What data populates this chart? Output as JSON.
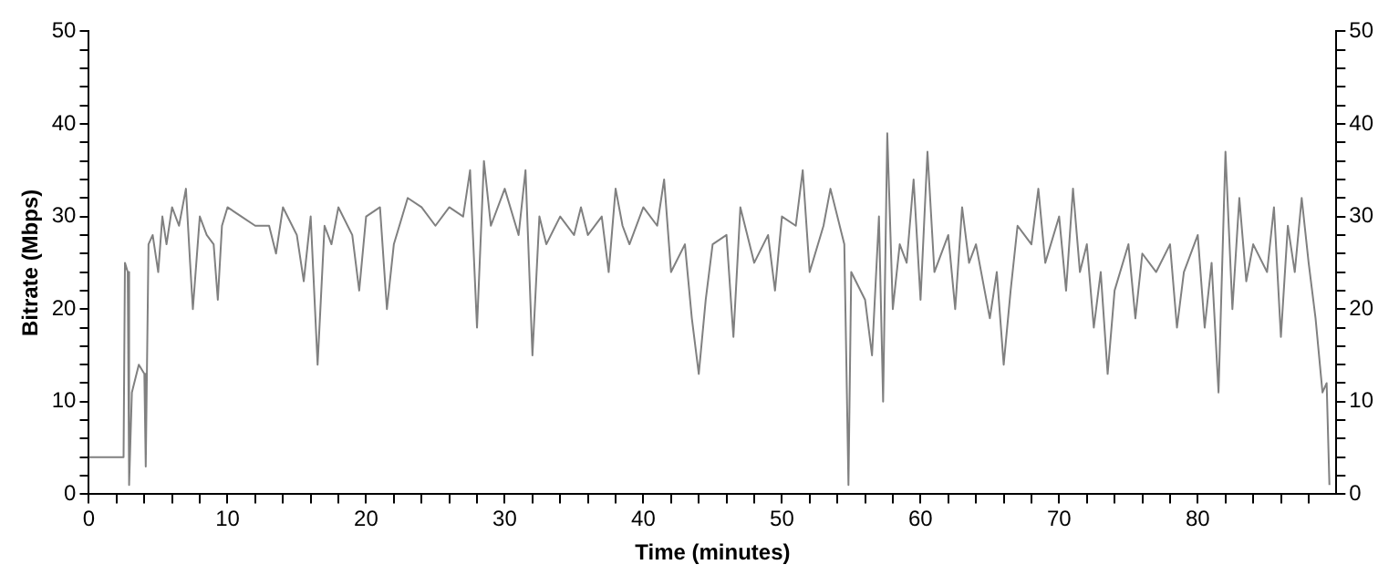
{
  "chart_data": {
    "type": "line",
    "xlabel": "Time (minutes)",
    "ylabel": "Bitrate (Mbps)",
    "xlim": [
      0,
      90
    ],
    "ylim": [
      0,
      50
    ],
    "y2lim": [
      0,
      50
    ],
    "xticks": [
      0,
      {
        "value": 2,
        "label": null
      },
      {
        "value": 4,
        "label": null
      },
      {
        "value": 6,
        "label": null
      },
      {
        "value": 8,
        "label": null
      },
      10,
      {
        "value": 12,
        "label": null
      },
      {
        "value": 14,
        "label": null
      },
      {
        "value": 16,
        "label": null
      },
      {
        "value": 18,
        "label": null
      },
      20,
      {
        "value": 22,
        "label": null
      },
      {
        "value": 24,
        "label": null
      },
      {
        "value": 26,
        "label": null
      },
      {
        "value": 28,
        "label": null
      },
      30,
      {
        "value": 32,
        "label": null
      },
      {
        "value": 34,
        "label": null
      },
      {
        "value": 36,
        "label": null
      },
      {
        "value": 38,
        "label": null
      },
      40,
      {
        "value": 42,
        "label": null
      },
      {
        "value": 44,
        "label": null
      },
      {
        "value": 46,
        "label": null
      },
      {
        "value": 48,
        "label": null
      },
      50,
      {
        "value": 52,
        "label": null
      },
      {
        "value": 54,
        "label": null
      },
      {
        "value": 56,
        "label": null
      },
      {
        "value": 58,
        "label": null
      },
      60,
      {
        "value": 62,
        "label": null
      },
      {
        "value": 64,
        "label": null
      },
      {
        "value": 66,
        "label": null
      },
      {
        "value": 68,
        "label": null
      },
      70,
      {
        "value": 72,
        "label": null
      },
      {
        "value": 74,
        "label": null
      },
      {
        "value": 76,
        "label": null
      },
      {
        "value": 78,
        "label": null
      },
      80,
      {
        "value": 82,
        "label": null
      },
      {
        "value": 84,
        "label": null
      },
      {
        "value": 86,
        "label": null
      },
      {
        "value": 88,
        "label": null
      }
    ],
    "yticks": [
      0,
      {
        "value": 2,
        "label": null
      },
      {
        "value": 4,
        "label": null
      },
      {
        "value": 6,
        "label": null
      },
      {
        "value": 8,
        "label": null
      },
      10,
      {
        "value": 12,
        "label": null
      },
      {
        "value": 14,
        "label": null
      },
      {
        "value": 16,
        "label": null
      },
      {
        "value": 18,
        "label": null
      },
      20,
      {
        "value": 22,
        "label": null
      },
      {
        "value": 24,
        "label": null
      },
      {
        "value": 26,
        "label": null
      },
      {
        "value": 28,
        "label": null
      },
      30,
      {
        "value": 32,
        "label": null
      },
      {
        "value": 34,
        "label": null
      },
      {
        "value": 36,
        "label": null
      },
      {
        "value": 38,
        "label": null
      },
      40,
      {
        "value": 42,
        "label": null
      },
      {
        "value": 44,
        "label": null
      },
      {
        "value": 46,
        "label": null
      },
      {
        "value": 48,
        "label": null
      },
      50
    ],
    "y2ticks": [
      0,
      {
        "value": 2,
        "label": null
      },
      {
        "value": 4,
        "label": null
      },
      {
        "value": 6,
        "label": null
      },
      {
        "value": 8,
        "label": null
      },
      10,
      {
        "value": 12,
        "label": null
      },
      {
        "value": 14,
        "label": null
      },
      {
        "value": 16,
        "label": null
      },
      {
        "value": 18,
        "label": null
      },
      20,
      {
        "value": 22,
        "label": null
      },
      {
        "value": 24,
        "label": null
      },
      {
        "value": 26,
        "label": null
      },
      {
        "value": 28,
        "label": null
      },
      30,
      {
        "value": 32,
        "label": null
      },
      {
        "value": 34,
        "label": null
      },
      {
        "value": 36,
        "label": null
      },
      {
        "value": 38,
        "label": null
      },
      40,
      {
        "value": 42,
        "label": null
      },
      {
        "value": 44,
        "label": null
      },
      {
        "value": 46,
        "label": null
      },
      {
        "value": 48,
        "label": null
      },
      50
    ],
    "marker": "none",
    "line_style": "solid",
    "series": [
      {
        "color": "#808080",
        "x": [
          0,
          2.5,
          2.6,
          2.8,
          2.9,
          3.1,
          3.6,
          4.0,
          4.1,
          4.3,
          4.6,
          5,
          5.3,
          5.6,
          6,
          6.5,
          7,
          7.3,
          7.5,
          8,
          8.5,
          9,
          9.3,
          9.6,
          10,
          11,
          12,
          13,
          13.5,
          14,
          15,
          15.5,
          16,
          16.5,
          17,
          17.5,
          18,
          19,
          19.5,
          20,
          21,
          21.5,
          22,
          23,
          24,
          25,
          26,
          27,
          27.5,
          28,
          28.5,
          29,
          30,
          31,
          31.5,
          32,
          32.5,
          33,
          34,
          35,
          35.5,
          36,
          37,
          37.5,
          38,
          38.5,
          39,
          40,
          41,
          41.5,
          42,
          43,
          43.5,
          44,
          44.5,
          45,
          46,
          46.5,
          47,
          48,
          49,
          49.5,
          50,
          51,
          51.5,
          52,
          53,
          53.5,
          54,
          54.5,
          54.8,
          55,
          56,
          56.5,
          57,
          57.3,
          57.6,
          58,
          58.5,
          59,
          59.5,
          60,
          60.5,
          61,
          62,
          62.5,
          63,
          63.5,
          64,
          65,
          65.5,
          66,
          66.5,
          67,
          68,
          68.5,
          69,
          70,
          70.5,
          71,
          71.5,
          72,
          72.5,
          73,
          73.5,
          74,
          75,
          75.5,
          76,
          77,
          78,
          78.5,
          79,
          80,
          80.5,
          81,
          81.5,
          82,
          82.5,
          83,
          83.5,
          84,
          85,
          85.5,
          86,
          86.5,
          87,
          87.5,
          88,
          88.5,
          89,
          89.3,
          89.5
        ],
        "values": [
          4,
          4,
          25,
          24,
          1,
          11,
          14,
          13,
          3,
          27,
          28,
          24,
          30,
          27,
          31,
          29,
          33,
          25,
          20,
          30,
          28,
          27,
          21,
          29,
          31,
          30,
          29,
          29,
          26,
          31,
          28,
          23,
          30,
          14,
          29,
          27,
          31,
          28,
          22,
          30,
          31,
          20,
          27,
          32,
          31,
          29,
          31,
          30,
          35,
          18,
          36,
          29,
          33,
          28,
          35,
          15,
          30,
          27,
          30,
          28,
          31,
          28,
          30,
          24,
          33,
          29,
          27,
          31,
          29,
          34,
          24,
          27,
          19,
          13,
          21,
          27,
          28,
          17,
          31,
          25,
          28,
          22,
          30,
          29,
          35,
          24,
          29,
          33,
          30,
          27,
          1,
          24,
          21,
          15,
          30,
          10,
          39,
          20,
          27,
          25,
          34,
          21,
          37,
          24,
          28,
          20,
          31,
          25,
          27,
          19,
          24,
          14,
          22,
          29,
          27,
          33,
          25,
          30,
          22,
          33,
          24,
          27,
          18,
          24,
          13,
          22,
          27,
          19,
          26,
          24,
          27,
          18,
          24,
          28,
          18,
          25,
          11,
          37,
          20,
          32,
          23,
          27,
          24,
          31,
          17,
          29,
          24,
          32,
          25,
          19,
          11,
          12,
          1
        ]
      }
    ]
  }
}
